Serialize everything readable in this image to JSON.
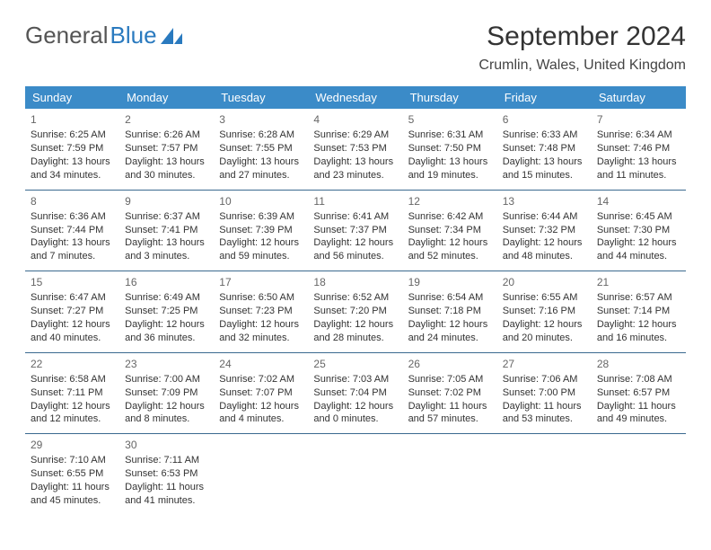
{
  "logo": {
    "text1": "General",
    "text2": "Blue"
  },
  "title": "September 2024",
  "location": "Crumlin, Wales, United Kingdom",
  "colors": {
    "header_bg": "#3b8bc8",
    "header_fg": "#ffffff",
    "row_divider": "#3b6a8f",
    "logo_accent": "#2a7abf",
    "text": "#333333"
  },
  "day_headers": [
    "Sunday",
    "Monday",
    "Tuesday",
    "Wednesday",
    "Thursday",
    "Friday",
    "Saturday"
  ],
  "weeks": [
    [
      {
        "day": "1",
        "sunrise": "Sunrise: 6:25 AM",
        "sunset": "Sunset: 7:59 PM",
        "dl1": "Daylight: 13 hours",
        "dl2": "and 34 minutes."
      },
      {
        "day": "2",
        "sunrise": "Sunrise: 6:26 AM",
        "sunset": "Sunset: 7:57 PM",
        "dl1": "Daylight: 13 hours",
        "dl2": "and 30 minutes."
      },
      {
        "day": "3",
        "sunrise": "Sunrise: 6:28 AM",
        "sunset": "Sunset: 7:55 PM",
        "dl1": "Daylight: 13 hours",
        "dl2": "and 27 minutes."
      },
      {
        "day": "4",
        "sunrise": "Sunrise: 6:29 AM",
        "sunset": "Sunset: 7:53 PM",
        "dl1": "Daylight: 13 hours",
        "dl2": "and 23 minutes."
      },
      {
        "day": "5",
        "sunrise": "Sunrise: 6:31 AM",
        "sunset": "Sunset: 7:50 PM",
        "dl1": "Daylight: 13 hours",
        "dl2": "and 19 minutes."
      },
      {
        "day": "6",
        "sunrise": "Sunrise: 6:33 AM",
        "sunset": "Sunset: 7:48 PM",
        "dl1": "Daylight: 13 hours",
        "dl2": "and 15 minutes."
      },
      {
        "day": "7",
        "sunrise": "Sunrise: 6:34 AM",
        "sunset": "Sunset: 7:46 PM",
        "dl1": "Daylight: 13 hours",
        "dl2": "and 11 minutes."
      }
    ],
    [
      {
        "day": "8",
        "sunrise": "Sunrise: 6:36 AM",
        "sunset": "Sunset: 7:44 PM",
        "dl1": "Daylight: 13 hours",
        "dl2": "and 7 minutes."
      },
      {
        "day": "9",
        "sunrise": "Sunrise: 6:37 AM",
        "sunset": "Sunset: 7:41 PM",
        "dl1": "Daylight: 13 hours",
        "dl2": "and 3 minutes."
      },
      {
        "day": "10",
        "sunrise": "Sunrise: 6:39 AM",
        "sunset": "Sunset: 7:39 PM",
        "dl1": "Daylight: 12 hours",
        "dl2": "and 59 minutes."
      },
      {
        "day": "11",
        "sunrise": "Sunrise: 6:41 AM",
        "sunset": "Sunset: 7:37 PM",
        "dl1": "Daylight: 12 hours",
        "dl2": "and 56 minutes."
      },
      {
        "day": "12",
        "sunrise": "Sunrise: 6:42 AM",
        "sunset": "Sunset: 7:34 PM",
        "dl1": "Daylight: 12 hours",
        "dl2": "and 52 minutes."
      },
      {
        "day": "13",
        "sunrise": "Sunrise: 6:44 AM",
        "sunset": "Sunset: 7:32 PM",
        "dl1": "Daylight: 12 hours",
        "dl2": "and 48 minutes."
      },
      {
        "day": "14",
        "sunrise": "Sunrise: 6:45 AM",
        "sunset": "Sunset: 7:30 PM",
        "dl1": "Daylight: 12 hours",
        "dl2": "and 44 minutes."
      }
    ],
    [
      {
        "day": "15",
        "sunrise": "Sunrise: 6:47 AM",
        "sunset": "Sunset: 7:27 PM",
        "dl1": "Daylight: 12 hours",
        "dl2": "and 40 minutes."
      },
      {
        "day": "16",
        "sunrise": "Sunrise: 6:49 AM",
        "sunset": "Sunset: 7:25 PM",
        "dl1": "Daylight: 12 hours",
        "dl2": "and 36 minutes."
      },
      {
        "day": "17",
        "sunrise": "Sunrise: 6:50 AM",
        "sunset": "Sunset: 7:23 PM",
        "dl1": "Daylight: 12 hours",
        "dl2": "and 32 minutes."
      },
      {
        "day": "18",
        "sunrise": "Sunrise: 6:52 AM",
        "sunset": "Sunset: 7:20 PM",
        "dl1": "Daylight: 12 hours",
        "dl2": "and 28 minutes."
      },
      {
        "day": "19",
        "sunrise": "Sunrise: 6:54 AM",
        "sunset": "Sunset: 7:18 PM",
        "dl1": "Daylight: 12 hours",
        "dl2": "and 24 minutes."
      },
      {
        "day": "20",
        "sunrise": "Sunrise: 6:55 AM",
        "sunset": "Sunset: 7:16 PM",
        "dl1": "Daylight: 12 hours",
        "dl2": "and 20 minutes."
      },
      {
        "day": "21",
        "sunrise": "Sunrise: 6:57 AM",
        "sunset": "Sunset: 7:14 PM",
        "dl1": "Daylight: 12 hours",
        "dl2": "and 16 minutes."
      }
    ],
    [
      {
        "day": "22",
        "sunrise": "Sunrise: 6:58 AM",
        "sunset": "Sunset: 7:11 PM",
        "dl1": "Daylight: 12 hours",
        "dl2": "and 12 minutes."
      },
      {
        "day": "23",
        "sunrise": "Sunrise: 7:00 AM",
        "sunset": "Sunset: 7:09 PM",
        "dl1": "Daylight: 12 hours",
        "dl2": "and 8 minutes."
      },
      {
        "day": "24",
        "sunrise": "Sunrise: 7:02 AM",
        "sunset": "Sunset: 7:07 PM",
        "dl1": "Daylight: 12 hours",
        "dl2": "and 4 minutes."
      },
      {
        "day": "25",
        "sunrise": "Sunrise: 7:03 AM",
        "sunset": "Sunset: 7:04 PM",
        "dl1": "Daylight: 12 hours",
        "dl2": "and 0 minutes."
      },
      {
        "day": "26",
        "sunrise": "Sunrise: 7:05 AM",
        "sunset": "Sunset: 7:02 PM",
        "dl1": "Daylight: 11 hours",
        "dl2": "and 57 minutes."
      },
      {
        "day": "27",
        "sunrise": "Sunrise: 7:06 AM",
        "sunset": "Sunset: 7:00 PM",
        "dl1": "Daylight: 11 hours",
        "dl2": "and 53 minutes."
      },
      {
        "day": "28",
        "sunrise": "Sunrise: 7:08 AM",
        "sunset": "Sunset: 6:57 PM",
        "dl1": "Daylight: 11 hours",
        "dl2": "and 49 minutes."
      }
    ],
    [
      {
        "day": "29",
        "sunrise": "Sunrise: 7:10 AM",
        "sunset": "Sunset: 6:55 PM",
        "dl1": "Daylight: 11 hours",
        "dl2": "and 45 minutes."
      },
      {
        "day": "30",
        "sunrise": "Sunrise: 7:11 AM",
        "sunset": "Sunset: 6:53 PM",
        "dl1": "Daylight: 11 hours",
        "dl2": "and 41 minutes."
      },
      null,
      null,
      null,
      null,
      null
    ]
  ]
}
